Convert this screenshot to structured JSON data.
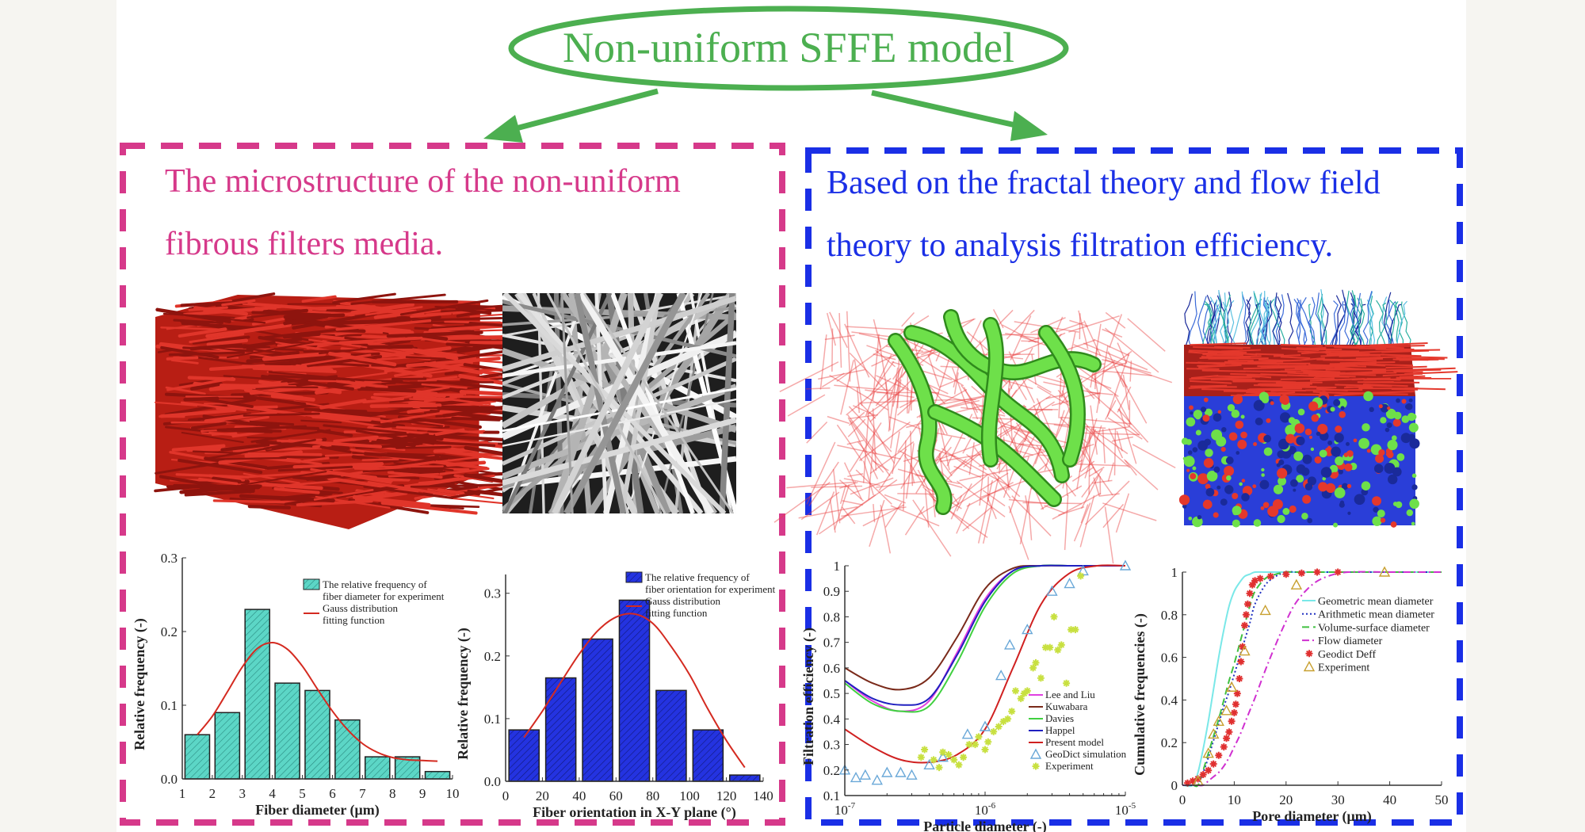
{
  "header": {
    "title": "Non-uniform SFFE model",
    "color": "#4caf50"
  },
  "left_panel": {
    "lines": [
      "The microstructure of the non-uniform",
      "fibrous filters media."
    ],
    "color": "#d6398a",
    "images": [
      "red-fiber-cube-render",
      "fiber-sem-micrograph"
    ]
  },
  "right_panel": {
    "lines": [
      "Based on the fractal theory and flow field",
      "theory to analysis filtration efficiency."
    ],
    "color": "#1a2fe6",
    "images": [
      "pore-network-render",
      "flow-streamlines-render"
    ]
  },
  "chart_data": [
    {
      "type": "bar",
      "xlabel": "Fiber diameter (μm)",
      "ylabel": "Relative frequency (-)",
      "xlim": [
        1,
        10
      ],
      "ylim": [
        0,
        0.3
      ],
      "xticks": [
        "1",
        "2",
        "3",
        "4",
        "5",
        "6",
        "7",
        "8",
        "9",
        "10"
      ],
      "yticks": [
        "0.0",
        "0.1",
        "0.2",
        "0.3"
      ],
      "bar_centers": [
        1.5,
        2.5,
        3.5,
        4.5,
        5.5,
        6.5,
        7.5,
        8.5,
        9.5
      ],
      "values": [
        0.06,
        0.09,
        0.23,
        0.13,
        0.12,
        0.08,
        0.03,
        0.03,
        0.01
      ],
      "bar_color": "#5cd6c6",
      "fit": {
        "x": [
          1.5,
          2,
          2.5,
          3,
          3.5,
          4,
          4.5,
          5,
          5.5,
          6,
          6.5,
          7,
          7.5,
          8,
          8.5,
          9,
          9.5
        ],
        "y": [
          0.06,
          0.085,
          0.118,
          0.152,
          0.177,
          0.185,
          0.176,
          0.153,
          0.122,
          0.092,
          0.067,
          0.048,
          0.036,
          0.029,
          0.026,
          0.025,
          0.024
        ]
      },
      "legend": [
        "The relative frequency of",
        "fiber diameter for experiment",
        "Gauss distribution",
        "fitting function"
      ]
    },
    {
      "type": "bar",
      "xlabel": "Fiber orientation in X-Y plane (°)",
      "ylabel": "Relative frequency (-)",
      "xlim": [
        0,
        140
      ],
      "ylim": [
        0,
        0.33
      ],
      "xticks": [
        "0",
        "20",
        "40",
        "60",
        "80",
        "100",
        "120",
        "140"
      ],
      "yticks": [
        "0.0",
        "0.1",
        "0.2",
        "0.3"
      ],
      "bar_centers": [
        10,
        30,
        50,
        70,
        90,
        110,
        130
      ],
      "values": [
        0.082,
        0.165,
        0.227,
        0.289,
        0.145,
        0.082,
        0.01
      ],
      "bar_color": "#2433e0",
      "fit": {
        "x": [
          10,
          20,
          30,
          40,
          50,
          60,
          70,
          80,
          90,
          100,
          110,
          120,
          130
        ],
        "y": [
          0.07,
          0.112,
          0.158,
          0.203,
          0.24,
          0.262,
          0.267,
          0.252,
          0.215,
          0.17,
          0.115,
          0.065,
          0.022
        ]
      },
      "legend": [
        "The relative frequency of",
        "fiber orientation for experiment",
        "Gauss distribution",
        "fitting function"
      ]
    },
    {
      "type": "line",
      "xlabel": "Particle diameter (-)",
      "ylabel": "Filtration efficiency (-)",
      "xscale": "log",
      "xlim": [
        1e-07,
        1e-05
      ],
      "ylim": [
        0.1,
        1
      ],
      "xticks": [
        {
          "base": "10",
          "exp": "-7"
        },
        {
          "base": "10",
          "exp": "-6"
        },
        {
          "base": "10",
          "exp": "-5"
        }
      ],
      "yticks": [
        "0.1",
        "0.2",
        "0.3",
        "0.4",
        "0.5",
        "0.6",
        "0.7",
        "0.8",
        "0.9",
        "1"
      ],
      "x": [
        1e-07,
        1.58e-07,
        2.51e-07,
        3.98e-07,
        6.31e-07,
        1e-06,
        1.58e-06,
        2.51e-06,
        3.98e-06,
        6.31e-06,
        1e-05
      ],
      "series": [
        {
          "name": "Lee and Liu",
          "color": "#e040e0",
          "values": [
            0.55,
            0.47,
            0.43,
            0.47,
            0.66,
            0.87,
            0.98,
            1,
            1,
            1,
            1
          ]
        },
        {
          "name": "Kuwabara",
          "color": "#7a2a1a",
          "values": [
            0.6,
            0.54,
            0.515,
            0.56,
            0.72,
            0.91,
            0.99,
            1,
            1,
            1,
            1
          ]
        },
        {
          "name": "Davies",
          "color": "#40d040",
          "values": [
            0.54,
            0.46,
            0.43,
            0.45,
            0.62,
            0.84,
            0.97,
            1,
            1,
            1,
            1
          ]
        },
        {
          "name": "Happel",
          "color": "#2020c0",
          "values": [
            0.55,
            0.48,
            0.455,
            0.48,
            0.65,
            0.86,
            0.98,
            1,
            1,
            1,
            1
          ]
        },
        {
          "name": "Present model",
          "color": "#d02020",
          "values": [
            0.36,
            0.29,
            0.24,
            0.23,
            0.26,
            0.36,
            0.6,
            0.85,
            0.97,
            1,
            1
          ]
        }
      ],
      "scatter": [
        {
          "name": "GeoDict simulation",
          "color": "#6aa8d8",
          "marker": "triangle",
          "points": [
            [
              1e-07,
              0.2
            ],
            [
              1.2e-07,
              0.17
            ],
            [
              1.4e-07,
              0.18
            ],
            [
              1.7e-07,
              0.16
            ],
            [
              2e-07,
              0.19
            ],
            [
              2.5e-07,
              0.19
            ],
            [
              3e-07,
              0.18
            ],
            [
              4e-07,
              0.22
            ],
            [
              5e-07,
              0.25
            ],
            [
              7.5e-07,
              0.34
            ],
            [
              1e-06,
              0.37
            ],
            [
              1.3e-06,
              0.57
            ],
            [
              1.5e-06,
              0.69
            ],
            [
              2e-06,
              0.75
            ],
            [
              3e-06,
              0.9
            ],
            [
              4e-06,
              0.93
            ],
            [
              5e-06,
              0.98
            ],
            [
              1e-05,
              1
            ]
          ]
        },
        {
          "name": "Experiment",
          "color": "#c8e040",
          "marker": "star",
          "points": [
            [
              3.5e-07,
              0.25
            ],
            [
              3.7e-07,
              0.28
            ],
            [
              4.3e-07,
              0.24
            ],
            [
              4.7e-07,
              0.21
            ],
            [
              5e-07,
              0.27
            ],
            [
              5.5e-07,
              0.26
            ],
            [
              6e-07,
              0.24
            ],
            [
              6.5e-07,
              0.22
            ],
            [
              7e-07,
              0.25
            ],
            [
              7.7e-07,
              0.3
            ],
            [
              8.5e-07,
              0.3
            ],
            [
              9e-07,
              0.33
            ],
            [
              1e-06,
              0.28
            ],
            [
              1.05e-06,
              0.31
            ],
            [
              1.15e-06,
              0.35
            ],
            [
              1.25e-06,
              0.37
            ],
            [
              1.35e-06,
              0.39
            ],
            [
              1.45e-06,
              0.4
            ],
            [
              1.55e-06,
              0.43
            ],
            [
              1.65e-06,
              0.51
            ],
            [
              1.8e-06,
              0.48
            ],
            [
              1.9e-06,
              0.5
            ],
            [
              2e-06,
              0.51
            ],
            [
              2.2e-06,
              0.6
            ],
            [
              2.3e-06,
              0.62
            ],
            [
              2.5e-06,
              0.56
            ],
            [
              2.7e-06,
              0.68
            ],
            [
              2.9e-06,
              0.68
            ],
            [
              3.1e-06,
              0.8
            ],
            [
              3.3e-06,
              0.67
            ],
            [
              3.5e-06,
              0.69
            ],
            [
              3.8e-06,
              0.54
            ],
            [
              4.1e-06,
              0.75
            ],
            [
              4.4e-06,
              0.75
            ],
            [
              4.8e-06,
              0.96
            ]
          ]
        }
      ],
      "legend_position": "bottom-right"
    },
    {
      "type": "line",
      "xlabel": "Pore diameter (μm)",
      "ylabel": "Cumulative frequencies (-)",
      "xlim": [
        0,
        50
      ],
      "ylim": [
        0,
        1
      ],
      "xticks": [
        "0",
        "10",
        "20",
        "30",
        "40",
        "50"
      ],
      "yticks": [
        "0",
        "0.2",
        "0.4",
        "0.6",
        "0.8",
        "1"
      ],
      "x": [
        0,
        2,
        3,
        4,
        5,
        6,
        7,
        8,
        9,
        10,
        11,
        12,
        13,
        14,
        16,
        18,
        20,
        22,
        25,
        28,
        32,
        40,
        50
      ],
      "series": [
        {
          "name": "Geometric mean diameter",
          "color": "#7ae8e8",
          "dash": "solid",
          "values": [
            0,
            0,
            0.06,
            0.17,
            0.3,
            0.45,
            0.6,
            0.73,
            0.84,
            0.91,
            0.95,
            0.98,
            0.99,
            1,
            1,
            1,
            1,
            1,
            1,
            1,
            1,
            1,
            1
          ]
        },
        {
          "name": "Arithmetic mean diameter",
          "color": "#2030c0",
          "dash": "dotted",
          "values": [
            0,
            0,
            0,
            0.06,
            0.13,
            0.21,
            0.29,
            0.37,
            0.44,
            0.52,
            0.6,
            0.68,
            0.76,
            0.85,
            0.94,
            0.98,
            1,
            1,
            1,
            1,
            1,
            1,
            1
          ]
        },
        {
          "name": "Volume-surface diameter",
          "color": "#40c040",
          "dash": "dashed",
          "values": [
            0,
            0,
            0,
            0.07,
            0.15,
            0.23,
            0.31,
            0.4,
            0.49,
            0.57,
            0.66,
            0.75,
            0.84,
            0.91,
            0.97,
            0.99,
            1,
            1,
            1,
            1,
            1,
            1,
            1
          ]
        },
        {
          "name": "Flow diameter",
          "color": "#d030d0",
          "dash": "dashdot",
          "values": [
            0,
            0,
            0,
            0,
            0.02,
            0.04,
            0.06,
            0.09,
            0.13,
            0.18,
            0.23,
            0.29,
            0.35,
            0.41,
            0.54,
            0.66,
            0.77,
            0.86,
            0.94,
            0.98,
            1,
            1,
            1
          ]
        }
      ],
      "scatter": [
        {
          "name": "Geodict Deff",
          "color": "#e03030",
          "marker": "star",
          "points": [
            [
              1,
              0.01
            ],
            [
              2,
              0.02
            ],
            [
              3,
              0.03
            ],
            [
              4,
              0.05
            ],
            [
              5,
              0.07
            ],
            [
              6,
              0.1
            ],
            [
              7,
              0.14
            ],
            [
              8,
              0.18
            ],
            [
              8.5,
              0.22
            ],
            [
              9,
              0.25
            ],
            [
              9.5,
              0.3
            ],
            [
              10,
              0.34
            ],
            [
              10.3,
              0.38
            ],
            [
              10.6,
              0.43
            ],
            [
              11,
              0.5
            ],
            [
              11.3,
              0.58
            ],
            [
              11.6,
              0.65
            ],
            [
              12,
              0.75
            ],
            [
              12.3,
              0.8
            ],
            [
              12.6,
              0.85
            ],
            [
              13,
              0.9
            ],
            [
              13.5,
              0.94
            ],
            [
              14,
              0.96
            ],
            [
              15,
              0.97
            ],
            [
              17,
              0.98
            ],
            [
              20,
              0.99
            ],
            [
              23,
              0.995
            ],
            [
              26,
              1
            ],
            [
              30,
              1
            ]
          ]
        },
        {
          "name": "Experiment",
          "color": "#c8a030",
          "marker": "triangle",
          "points": [
            [
              3,
              0.02
            ],
            [
              5,
              0.15
            ],
            [
              6,
              0.24
            ],
            [
              7,
              0.3
            ],
            [
              8.5,
              0.35
            ],
            [
              9.5,
              0.46
            ],
            [
              12,
              0.63
            ],
            [
              16,
              0.82
            ],
            [
              22,
              0.94
            ],
            [
              39,
              1
            ]
          ]
        }
      ],
      "legend_position": "top-right"
    }
  ]
}
